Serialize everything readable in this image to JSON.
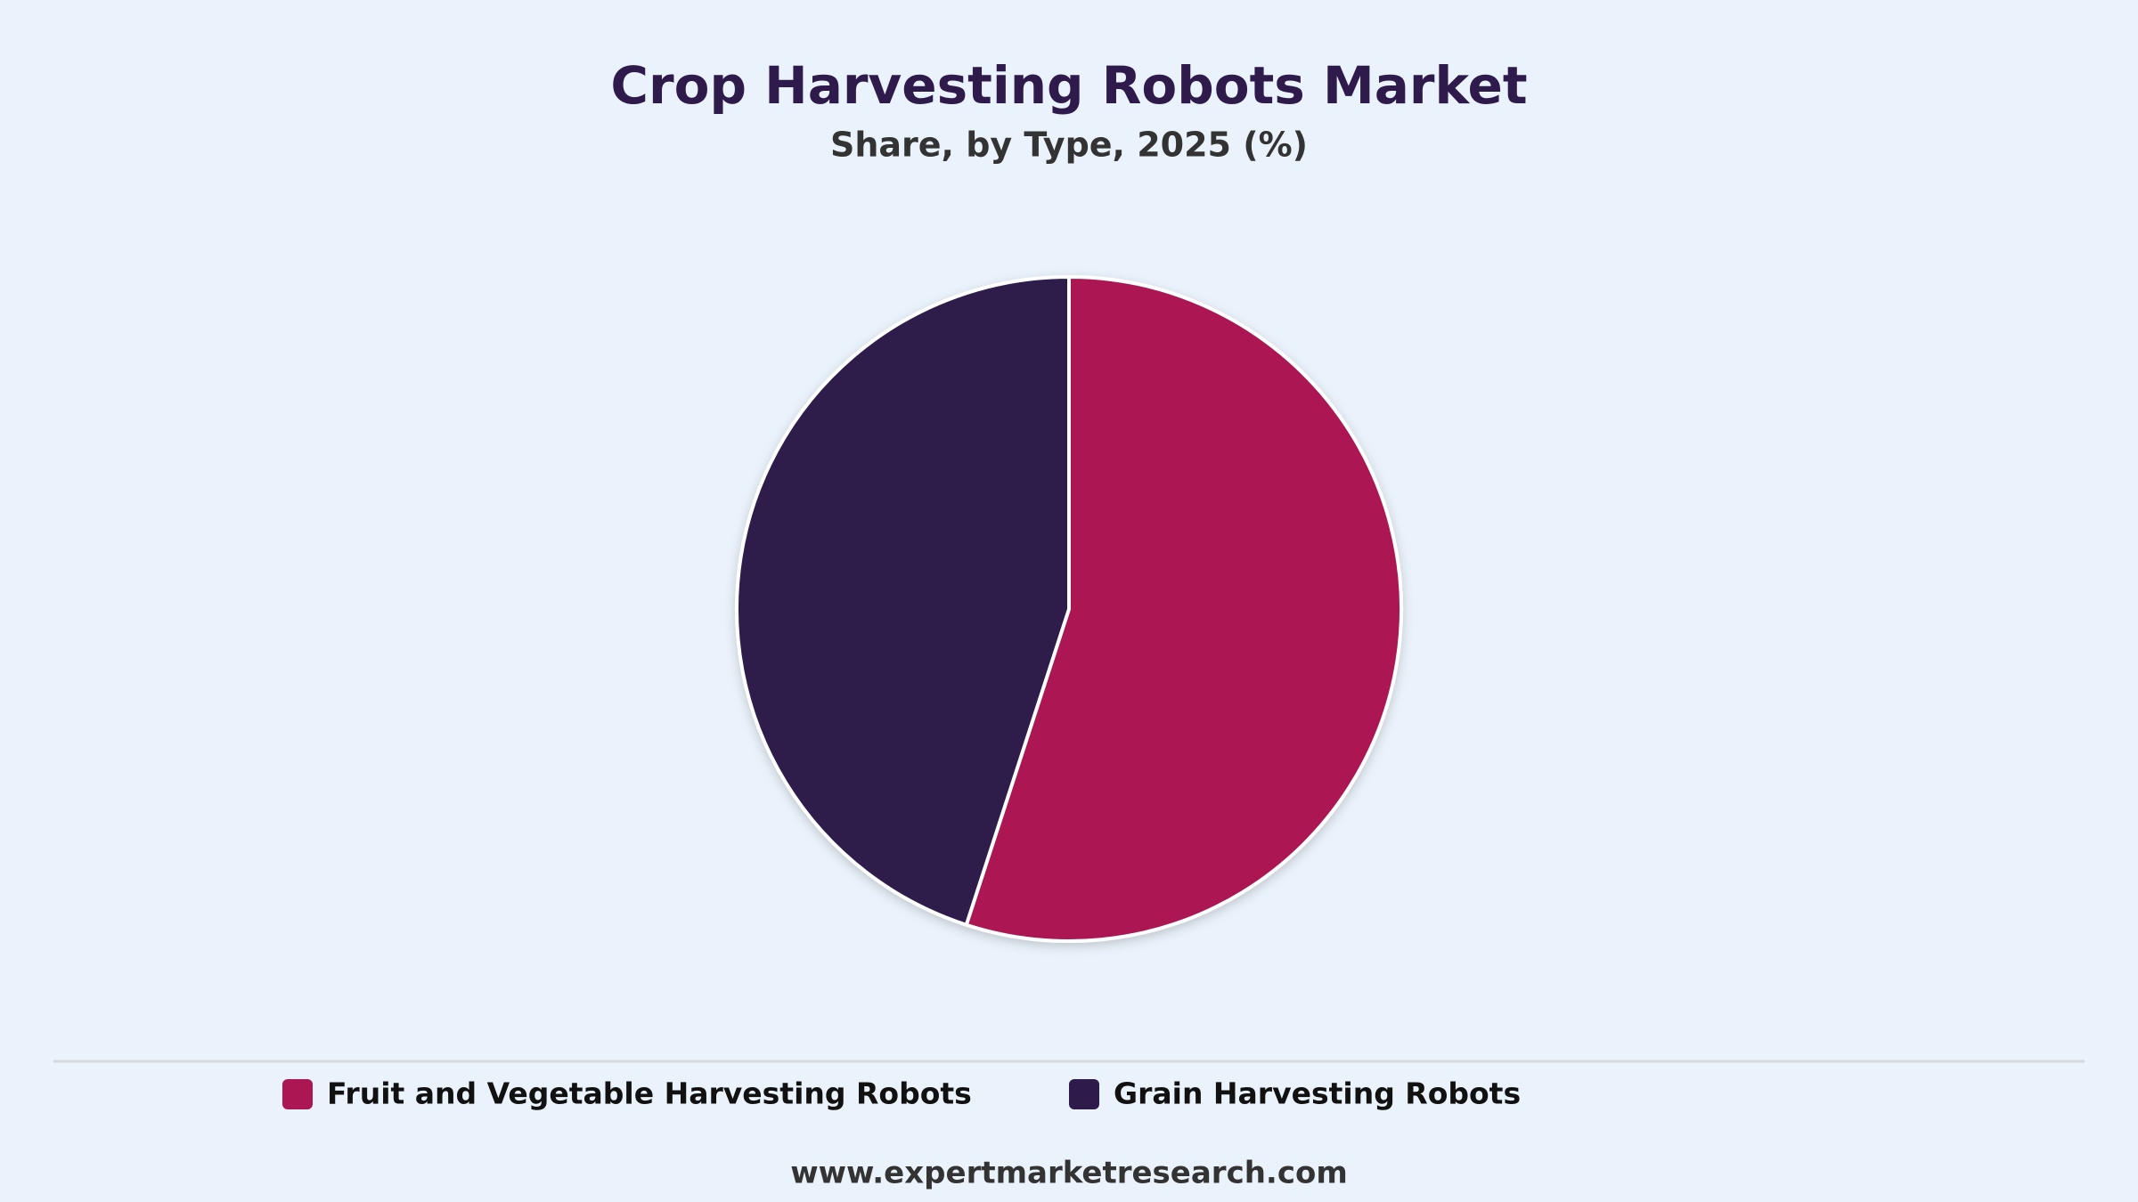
{
  "chart_data": {
    "type": "pie",
    "title": "Crop Harvesting Robots Market",
    "subtitle": "Share, by Type, 2025 (%)",
    "categories": [
      "Fruit and Vegetable Harvesting Robots",
      "Grain Harvesting Robots"
    ],
    "values": [
      55,
      45
    ],
    "colors": [
      "#ab1653",
      "#2e1a4b"
    ]
  },
  "footer": "www.expertmarketresearch.com"
}
